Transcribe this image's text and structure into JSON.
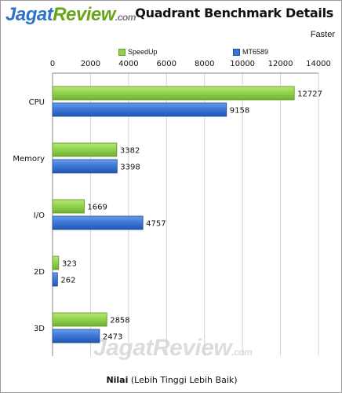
{
  "logo": {
    "part1": "Jagat",
    "part2": "Review",
    "part3": ".com"
  },
  "title": "Quadrant Benchmark Details",
  "annotation": "Faster",
  "watermark": {
    "part1": "Jagat",
    "part2": "Review",
    "part3": ".com"
  },
  "xlabel_bold": "Nilai",
  "xlabel_rest": "(Lebih Tinggi Lebih Baik)",
  "chart_data": {
    "type": "bar",
    "orientation": "horizontal",
    "title": "Quadrant Benchmark Details",
    "xlabel": "Nilai (Lebih Tinggi Lebih Baik)",
    "ylabel": "",
    "categories": [
      "CPU",
      "Memory",
      "I/O",
      "2D",
      "3D"
    ],
    "series": [
      {
        "name": "SpeedUp",
        "color": "#8fd14f",
        "values": [
          12727,
          3382,
          1669,
          323,
          2858
        ]
      },
      {
        "name": "MT6589",
        "color": "#3a75d6",
        "values": [
          9158,
          3398,
          4757,
          262,
          2473
        ]
      }
    ],
    "xlim": [
      0,
      14000
    ],
    "xticks": [
      0,
      2000,
      4000,
      6000,
      8000,
      10000,
      12000,
      14000
    ],
    "grid": true,
    "legend": "top",
    "axis_position": "top"
  }
}
